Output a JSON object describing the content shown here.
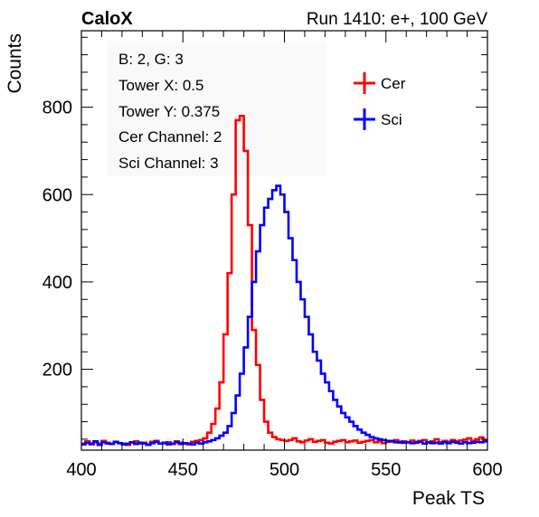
{
  "header": {
    "left_title": "CaloX",
    "right_title": "Run 1410: e+, 100 GeV"
  },
  "info_box": {
    "lines": [
      "B: 2, G: 3",
      "Tower X: 0.5",
      "Tower Y: 0.375",
      "Cer Channel: 2",
      "Sci Channel: 3"
    ]
  },
  "chart_data": {
    "type": "line",
    "title": "",
    "xlabel": "Peak TS",
    "ylabel": "Counts",
    "xlim": [
      400,
      600
    ],
    "ylim": [
      15,
      975
    ],
    "x_ticks": [
      400,
      450,
      500,
      550,
      600
    ],
    "y_ticks": [
      200,
      400,
      600,
      800
    ],
    "grid": false,
    "legend_position": "top-right",
    "bin_width": 2,
    "series": [
      {
        "name": "Cer",
        "color": "#ff0000",
        "x": [
          400,
          402,
          404,
          406,
          408,
          410,
          412,
          414,
          416,
          418,
          420,
          422,
          424,
          426,
          428,
          430,
          432,
          434,
          436,
          438,
          440,
          442,
          444,
          446,
          448,
          450,
          452,
          454,
          456,
          458,
          460,
          462,
          464,
          466,
          468,
          470,
          472,
          474,
          476,
          478,
          480,
          482,
          484,
          486,
          488,
          490,
          492,
          494,
          496,
          498,
          500,
          502,
          504,
          506,
          508,
          510,
          512,
          514,
          516,
          518,
          520,
          522,
          524,
          526,
          528,
          530,
          532,
          534,
          536,
          538,
          540,
          542,
          544,
          546,
          548,
          550,
          552,
          554,
          556,
          558,
          560,
          562,
          564,
          566,
          568,
          570,
          572,
          574,
          576,
          578,
          580,
          582,
          584,
          586,
          588,
          590,
          592,
          594,
          596,
          598
        ],
        "values": [
          30,
          35,
          28,
          33,
          30,
          36,
          32,
          29,
          34,
          31,
          30,
          27,
          33,
          35,
          30,
          32,
          28,
          34,
          36,
          30,
          31,
          33,
          29,
          35,
          32,
          30,
          28,
          34,
          36,
          38,
          42,
          55,
          75,
          110,
          170,
          280,
          420,
          600,
          770,
          780,
          700,
          530,
          290,
          210,
          130,
          80,
          55,
          45,
          40,
          38,
          36,
          38,
          42,
          35,
          33,
          37,
          40,
          34,
          36,
          38,
          32,
          30,
          34,
          36,
          38,
          33,
          35,
          37,
          32,
          34,
          36,
          38,
          33,
          35,
          31,
          34,
          36,
          38,
          32,
          35,
          33,
          37,
          34,
          36,
          38,
          32,
          35,
          40,
          33,
          36,
          34,
          38,
          35,
          37,
          39,
          42,
          36,
          40,
          44,
          38
        ]
      },
      {
        "name": "Sci",
        "color": "#0000ff",
        "x": [
          400,
          402,
          404,
          406,
          408,
          410,
          412,
          414,
          416,
          418,
          420,
          422,
          424,
          426,
          428,
          430,
          432,
          434,
          436,
          438,
          440,
          442,
          444,
          446,
          448,
          450,
          452,
          454,
          456,
          458,
          460,
          462,
          464,
          466,
          468,
          470,
          472,
          474,
          476,
          478,
          480,
          482,
          484,
          486,
          488,
          490,
          492,
          494,
          496,
          498,
          500,
          502,
          504,
          506,
          508,
          510,
          512,
          514,
          516,
          518,
          520,
          522,
          524,
          526,
          528,
          530,
          532,
          534,
          536,
          538,
          540,
          542,
          544,
          546,
          548,
          550,
          552,
          554,
          556,
          558,
          560,
          562,
          564,
          566,
          568,
          570,
          572,
          574,
          576,
          578,
          580,
          582,
          584,
          586,
          588,
          590,
          592,
          594,
          596,
          598
        ],
        "values": [
          28,
          32,
          30,
          35,
          27,
          33,
          30,
          29,
          34,
          31,
          28,
          30,
          33,
          29,
          32,
          30,
          27,
          31,
          34,
          30,
          32,
          28,
          30,
          33,
          29,
          31,
          30,
          28,
          32,
          30,
          33,
          35,
          38,
          42,
          48,
          55,
          70,
          100,
          140,
          190,
          250,
          320,
          400,
          470,
          530,
          570,
          590,
          610,
          620,
          600,
          560,
          500,
          450,
          400,
          360,
          320,
          280,
          240,
          220,
          190,
          170,
          150,
          130,
          115,
          100,
          90,
          80,
          70,
          62,
          55,
          50,
          45,
          42,
          40,
          38,
          36,
          35,
          33,
          34,
          32,
          33,
          31,
          32,
          34,
          30,
          33,
          31,
          32,
          30,
          33,
          31,
          34,
          32,
          30,
          33,
          31,
          32,
          34,
          33,
          35
        ]
      }
    ]
  }
}
